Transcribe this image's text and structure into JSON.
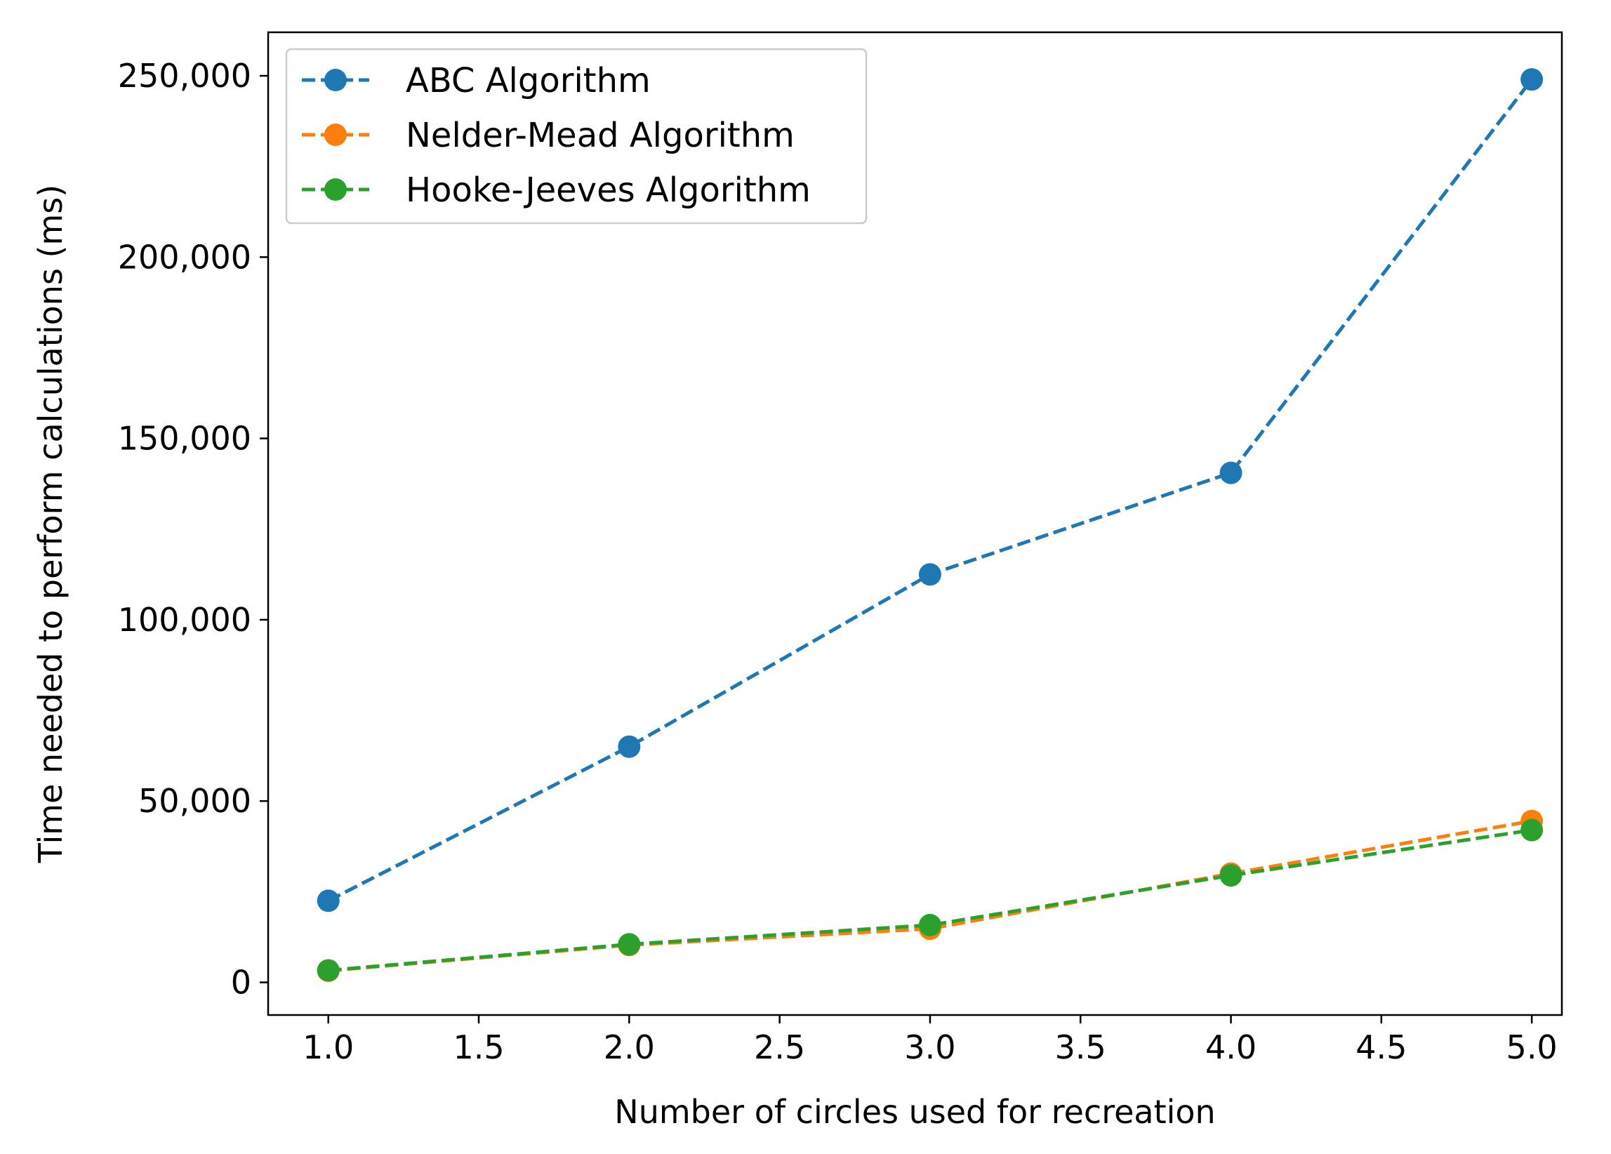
{
  "chart_data": {
    "type": "line",
    "title": "",
    "xlabel": "Number of circles used for recreation",
    "ylabel": "Time needed to perform calculations (ms)",
    "xlim": [
      0.8,
      5.1
    ],
    "ylim": [
      -9000,
      262000
    ],
    "xticks": [
      1.0,
      1.5,
      2.0,
      2.5,
      3.0,
      3.5,
      4.0,
      4.5,
      5.0
    ],
    "xtick_labels": [
      "1.0",
      "1.5",
      "2.0",
      "2.5",
      "3.0",
      "3.5",
      "4.0",
      "4.5",
      "5.0"
    ],
    "yticks": [
      0,
      50000,
      100000,
      150000,
      200000,
      250000
    ],
    "ytick_labels": [
      "0",
      "50,000",
      "100,000",
      "150,000",
      "200,000",
      "250,000"
    ],
    "grid": false,
    "legend_position": "top-left",
    "x": [
      1,
      2,
      3,
      4,
      5
    ],
    "series": [
      {
        "name": "ABC Algorithm",
        "color": "#1f77b4",
        "linestyle": "dashed",
        "marker": "circle",
        "values": [
          22500,
          65000,
          112500,
          140500,
          249000
        ]
      },
      {
        "name": "Nelder-Mead Algorithm",
        "color": "#ff7f0e",
        "linestyle": "dashed",
        "marker": "circle",
        "values": [
          3200,
          10300,
          14800,
          30000,
          44500
        ]
      },
      {
        "name": "Hooke-Jeeves Algorithm",
        "color": "#2ca02c",
        "linestyle": "dashed",
        "marker": "circle",
        "values": [
          3300,
          10500,
          15800,
          29500,
          42000
        ]
      }
    ]
  }
}
